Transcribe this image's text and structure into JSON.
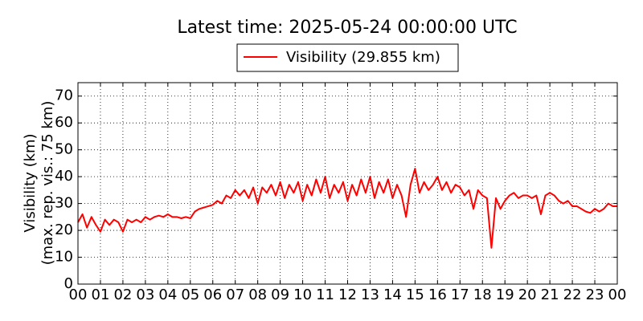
{
  "chart_data": {
    "type": "line",
    "title": "Latest time: 2025-05-24 00:00:00 UTC",
    "ylabel": [
      "Visibility (km)",
      "(max. rep. vis.: 75 km)"
    ],
    "x": [
      0,
      0.2,
      0.4,
      0.6,
      0.8,
      1,
      1.2,
      1.4,
      1.6,
      1.8,
      2,
      2.2,
      2.4,
      2.6,
      2.8,
      3,
      3.2,
      3.4,
      3.6,
      3.8,
      4,
      4.2,
      4.4,
      4.6,
      4.8,
      5,
      5.2,
      5.4,
      5.6,
      5.8,
      6,
      6.2,
      6.4,
      6.6,
      6.8,
      7,
      7.2,
      7.4,
      7.6,
      7.8,
      8,
      8.2,
      8.4,
      8.6,
      8.8,
      9,
      9.2,
      9.4,
      9.6,
      9.8,
      10,
      10.2,
      10.4,
      10.6,
      10.8,
      11,
      11.2,
      11.4,
      11.6,
      11.8,
      12,
      12.2,
      12.4,
      12.6,
      12.8,
      13,
      13.2,
      13.4,
      13.6,
      13.8,
      14,
      14.2,
      14.4,
      14.6,
      14.8,
      15,
      15.2,
      15.4,
      15.6,
      15.8,
      16,
      16.2,
      16.4,
      16.6,
      16.8,
      17,
      17.2,
      17.4,
      17.6,
      17.8,
      18,
      18.2,
      18.4,
      18.6,
      18.8,
      19,
      19.2,
      19.4,
      19.6,
      19.8,
      20,
      20.2,
      20.4,
      20.6,
      20.8,
      21,
      21.2,
      21.4,
      21.6,
      21.8,
      22,
      22.2,
      22.4,
      22.6,
      22.8,
      23,
      23.2,
      23.4,
      23.6,
      23.8,
      24
    ],
    "series": [
      {
        "name": "Visibility (29.855 km)",
        "color": "#ff0000",
        "values": [
          23,
          26,
          21,
          25,
          22,
          19.5,
          24,
          22,
          24,
          23,
          19.5,
          24,
          23,
          24,
          23,
          25,
          24,
          25,
          25.5,
          25,
          26,
          25,
          25,
          24.5,
          25,
          24.5,
          27,
          28,
          28.5,
          29,
          29.5,
          31,
          30,
          33,
          32,
          35,
          33,
          35,
          32,
          36,
          30,
          36,
          34,
          37,
          33,
          38,
          32,
          37,
          34,
          38,
          31,
          37,
          33,
          39,
          34,
          40,
          32,
          37,
          34,
          38,
          31,
          37,
          33,
          39,
          34,
          40,
          32,
          38,
          34,
          39,
          32,
          37,
          33,
          25,
          37,
          43,
          34,
          38,
          35,
          37,
          40,
          35,
          38,
          34,
          37,
          36,
          33,
          35,
          28,
          35,
          33,
          32,
          13.5,
          32,
          28,
          31,
          33,
          34,
          32,
          33,
          33,
          32,
          33,
          26,
          33,
          34,
          33,
          31,
          30,
          31,
          29,
          29,
          28,
          27,
          26.5,
          28,
          27,
          28,
          30,
          29,
          29
        ]
      }
    ],
    "xlim": [
      0,
      24
    ],
    "xticks": [
      {
        "value": 0,
        "label": "00"
      },
      {
        "value": 1,
        "label": "01"
      },
      {
        "value": 2,
        "label": "02"
      },
      {
        "value": 3,
        "label": "03"
      },
      {
        "value": 4,
        "label": "04"
      },
      {
        "value": 5,
        "label": "05"
      },
      {
        "value": 6,
        "label": "06"
      },
      {
        "value": 7,
        "label": "07"
      },
      {
        "value": 8,
        "label": "08"
      },
      {
        "value": 9,
        "label": "09"
      },
      {
        "value": 10,
        "label": "10"
      },
      {
        "value": 11,
        "label": "11"
      },
      {
        "value": 12,
        "label": "12"
      },
      {
        "value": 13,
        "label": "13"
      },
      {
        "value": 14,
        "label": "14"
      },
      {
        "value": 15,
        "label": "15"
      },
      {
        "value": 16,
        "label": "16"
      },
      {
        "value": 17,
        "label": "17"
      },
      {
        "value": 18,
        "label": "18"
      },
      {
        "value": 19,
        "label": "19"
      },
      {
        "value": 20,
        "label": "20"
      },
      {
        "value": 21,
        "label": "21"
      },
      {
        "value": 22,
        "label": "22"
      },
      {
        "value": 23,
        "label": "23"
      },
      {
        "value": 24,
        "label": "00"
      }
    ],
    "ylim": [
      0,
      75
    ],
    "yticks": [
      0,
      10,
      20,
      30,
      40,
      50,
      60,
      70
    ],
    "grid": true
  }
}
